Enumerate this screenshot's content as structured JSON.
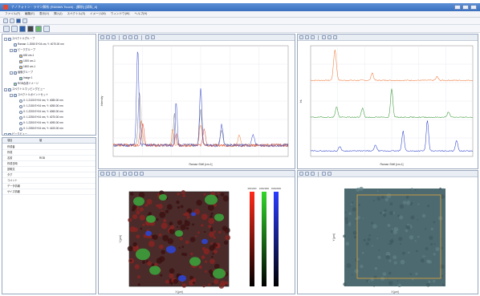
{
  "app": {
    "title": "ナノフォトン · ラマン解析 (RAMAN Touch) - [解析] [試料_A]"
  },
  "menu": [
    "ファイル(F)",
    "編集(E)",
    "表示(V)",
    "挿入(I)",
    "スペクトル(S)",
    "イメージ(M)",
    "ウィンドウ(W)",
    "ヘルプ(H)"
  ],
  "tree": {
    "items": [
      {
        "label": "スペクトルグループ",
        "level": 0,
        "icon": "folder"
      },
      {
        "label": "Raman: 1.2050 E+04 cm, Y: 4070.00 nm",
        "level": 1,
        "icon": "spectrum"
      },
      {
        "label": "ピークグループ",
        "level": 1,
        "icon": "folder"
      },
      {
        "label": "600 cm-1",
        "level": 2,
        "icon": "peak"
      },
      {
        "label": "1000 cm-1",
        "level": 2,
        "icon": "peak"
      },
      {
        "label": "1600 cm-1",
        "level": 2,
        "icon": "peak"
      },
      {
        "label": "画像グループ",
        "level": 1,
        "icon": "folder"
      },
      {
        "label": "Image 1",
        "level": 2,
        "icon": "image"
      },
      {
        "label": "RGB合成イメージ",
        "level": 1,
        "icon": "rgb"
      },
      {
        "label": "スペクトルマッピングビュー",
        "level": 0,
        "icon": "folder"
      },
      {
        "label": "スペクトルポイントセット",
        "level": 1,
        "icon": "folder"
      },
      {
        "label": "X: 1.2100 E+04 nm, Y: 4080.00 nm",
        "level": 2,
        "icon": "point"
      },
      {
        "label": "X: 1.2150 E+04 nm, Y: 4050.00 nm",
        "level": 2,
        "icon": "point"
      },
      {
        "label": "X: 1.2200 E+04 nm, Y: 4060.00 nm",
        "level": 2,
        "icon": "point"
      },
      {
        "label": "X: 1.2250 E+04 nm, Y: 4070.00 nm",
        "level": 2,
        "icon": "point"
      },
      {
        "label": "X: 1.2300 E+04 nm, Y: 4090.00 nm",
        "level": 2,
        "icon": "point"
      },
      {
        "label": "X: 1.2350 E+04 nm, Y: 4100.00 nm",
        "level": 2,
        "icon": "point"
      },
      {
        "label": "ピークビュー",
        "level": 0,
        "icon": "folder"
      }
    ]
  },
  "props": {
    "header_name": "項目",
    "header_value": "値",
    "rows": [
      {
        "name": "作成者",
        "value": ""
      },
      {
        "name": "作成",
        "value": ""
      },
      {
        "name": "名前",
        "value": "RGB"
      },
      {
        "name": "作成日時",
        "value": ""
      },
      {
        "name": "説明文",
        "value": ""
      },
      {
        "name": "タグ",
        "value": ""
      },
      {
        "name": "コメント",
        "value": ""
      },
      {
        "name": "データ情報",
        "value": ""
      },
      {
        "name": "サイズ情報",
        "value": ""
      }
    ]
  },
  "spectrum_panel": {
    "xlabel": "Raman Shift [cm-1]",
    "ylabel": "Intensity"
  },
  "stacked_panel": {
    "xlabel": "Raman Shift [cm-1]",
    "ylabel": "Int."
  },
  "map_panel": {
    "xlabel": "X [μm]",
    "ylabel": "Y [μm]",
    "colorbar_labels": [
      "600/1000",
      "1000/1600",
      "1600/2000"
    ]
  },
  "image_panel": {
    "xlabel": "X [μm]",
    "ylabel": "Y [μm]"
  },
  "colors": {
    "red": "#d8382b",
    "green": "#3c9a3a",
    "blue": "#2e43c9",
    "gray": "#7a7a7a",
    "orange": "#f07a3a",
    "map_bg": "#4b2a2a",
    "image_bg": "#4d6a70",
    "selection": "#e0a53a"
  }
}
